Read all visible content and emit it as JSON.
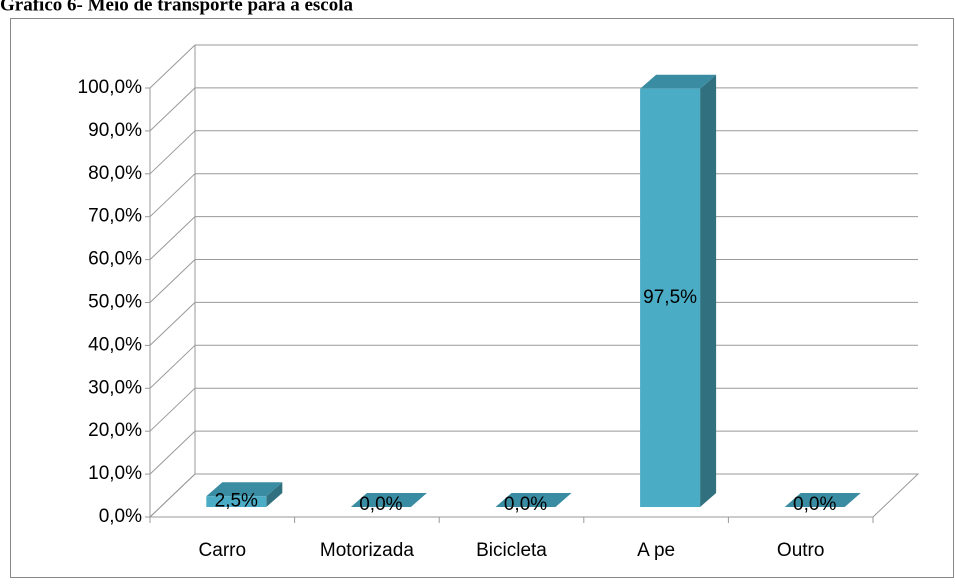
{
  "chart_data": {
    "type": "bar3d",
    "title": "Gráfico 6- Meio de transporte para a escola",
    "categories": [
      "Carro",
      "Motorizada",
      "Bicicleta",
      "A pe",
      "Outro"
    ],
    "values": [
      2.5,
      0,
      0,
      97.5,
      0
    ],
    "value_labels": [
      "2,5%",
      "0,0%",
      "0,0%",
      "97,5%",
      "0,0%"
    ],
    "color": "#4bacc6",
    "ylim": [
      0,
      100
    ],
    "yticks": [
      {
        "value": 0,
        "label": "0,0%"
      },
      {
        "value": 10,
        "label": "10,0%"
      },
      {
        "value": 20,
        "label": "20,0%"
      },
      {
        "value": 30,
        "label": "30,0%"
      },
      {
        "value": 40,
        "label": "40,0%"
      },
      {
        "value": 50,
        "label": "50,0%"
      },
      {
        "value": 60,
        "label": "60,0%"
      },
      {
        "value": 70,
        "label": "70,0%"
      },
      {
        "value": 80,
        "label": "80,0%"
      },
      {
        "value": 90,
        "label": "90,0%"
      },
      {
        "value": 100,
        "label": "100,0%"
      }
    ],
    "grid": true
  }
}
